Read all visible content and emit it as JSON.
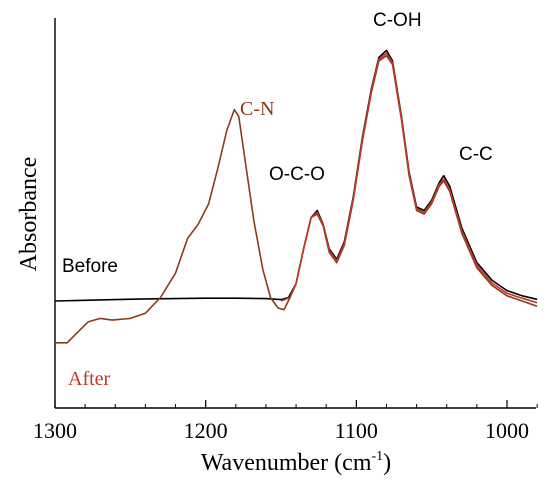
{
  "chart_data": {
    "type": "line",
    "xlabel": "Wavenumber (cm",
    "xlabel_sup": "-1",
    "xlabel_tail": ")",
    "ylabel": "Absorbance",
    "xlim": [
      1300,
      980
    ],
    "ylim": [
      0,
      1
    ],
    "x_reversed": true,
    "x_ticks": [
      1300,
      1200,
      1100,
      1000
    ],
    "y_ticks_labeled": false,
    "grid": false,
    "series": [
      {
        "name": "Before",
        "color": "#000000",
        "points": [
          [
            1300,
            0.25
          ],
          [
            1280,
            0.252
          ],
          [
            1260,
            0.254
          ],
          [
            1240,
            0.256
          ],
          [
            1220,
            0.257
          ],
          [
            1200,
            0.258
          ],
          [
            1180,
            0.258
          ],
          [
            1160,
            0.257
          ],
          [
            1150,
            0.254
          ],
          [
            1145,
            0.26
          ],
          [
            1140,
            0.3
          ],
          [
            1135,
            0.4
          ],
          [
            1130,
            0.49
          ],
          [
            1126,
            0.51
          ],
          [
            1122,
            0.47
          ],
          [
            1118,
            0.4
          ],
          [
            1113,
            0.37
          ],
          [
            1108,
            0.42
          ],
          [
            1102,
            0.55
          ],
          [
            1096,
            0.72
          ],
          [
            1090,
            0.86
          ],
          [
            1085,
            0.95
          ],
          [
            1080,
            0.97
          ],
          [
            1076,
            0.94
          ],
          [
            1070,
            0.78
          ],
          [
            1065,
            0.62
          ],
          [
            1060,
            0.52
          ],
          [
            1055,
            0.51
          ],
          [
            1050,
            0.54
          ],
          [
            1045,
            0.59
          ],
          [
            1042,
            0.61
          ],
          [
            1038,
            0.58
          ],
          [
            1030,
            0.46
          ],
          [
            1020,
            0.36
          ],
          [
            1010,
            0.31
          ],
          [
            1000,
            0.28
          ],
          [
            990,
            0.265
          ],
          [
            980,
            0.255
          ]
        ]
      },
      {
        "name": "After",
        "color": "#8b3a1a",
        "points": [
          [
            1300,
            0.13
          ],
          [
            1292,
            0.13
          ],
          [
            1285,
            0.16
          ],
          [
            1278,
            0.19
          ],
          [
            1270,
            0.2
          ],
          [
            1262,
            0.195
          ],
          [
            1250,
            0.2
          ],
          [
            1240,
            0.215
          ],
          [
            1230,
            0.26
          ],
          [
            1220,
            0.33
          ],
          [
            1212,
            0.43
          ],
          [
            1205,
            0.47
          ],
          [
            1198,
            0.53
          ],
          [
            1192,
            0.63
          ],
          [
            1186,
            0.74
          ],
          [
            1181,
            0.8
          ],
          [
            1178,
            0.78
          ],
          [
            1174,
            0.66
          ],
          [
            1168,
            0.48
          ],
          [
            1162,
            0.34
          ],
          [
            1157,
            0.26
          ],
          [
            1152,
            0.23
          ],
          [
            1148,
            0.225
          ],
          [
            1144,
            0.26
          ],
          [
            1140,
            0.3
          ],
          [
            1135,
            0.4
          ],
          [
            1130,
            0.49
          ],
          [
            1126,
            0.5
          ],
          [
            1122,
            0.465
          ],
          [
            1118,
            0.39
          ],
          [
            1113,
            0.36
          ],
          [
            1108,
            0.41
          ],
          [
            1102,
            0.54
          ],
          [
            1096,
            0.71
          ],
          [
            1090,
            0.85
          ],
          [
            1085,
            0.94
          ],
          [
            1080,
            0.955
          ],
          [
            1076,
            0.93
          ],
          [
            1070,
            0.77
          ],
          [
            1065,
            0.61
          ],
          [
            1060,
            0.51
          ],
          [
            1055,
            0.5
          ],
          [
            1050,
            0.53
          ],
          [
            1045,
            0.58
          ],
          [
            1042,
            0.595
          ],
          [
            1038,
            0.565
          ],
          [
            1030,
            0.445
          ],
          [
            1020,
            0.345
          ],
          [
            1010,
            0.295
          ],
          [
            1000,
            0.265
          ],
          [
            990,
            0.25
          ],
          [
            980,
            0.235
          ]
        ]
      },
      {
        "name": "",
        "color": "#c0392b",
        "points": [
          [
            1150,
            0.25
          ],
          [
            1144,
            0.26
          ],
          [
            1140,
            0.3
          ],
          [
            1135,
            0.4
          ],
          [
            1130,
            0.49
          ],
          [
            1126,
            0.505
          ],
          [
            1122,
            0.468
          ],
          [
            1118,
            0.395
          ],
          [
            1113,
            0.365
          ],
          [
            1108,
            0.415
          ],
          [
            1102,
            0.545
          ],
          [
            1096,
            0.715
          ],
          [
            1090,
            0.855
          ],
          [
            1085,
            0.945
          ],
          [
            1080,
            0.962
          ],
          [
            1076,
            0.935
          ],
          [
            1070,
            0.775
          ],
          [
            1065,
            0.615
          ],
          [
            1060,
            0.515
          ],
          [
            1055,
            0.505
          ],
          [
            1050,
            0.535
          ],
          [
            1045,
            0.585
          ],
          [
            1042,
            0.6
          ],
          [
            1038,
            0.57
          ],
          [
            1030,
            0.452
          ],
          [
            1020,
            0.352
          ],
          [
            1010,
            0.302
          ],
          [
            1000,
            0.272
          ],
          [
            990,
            0.258
          ],
          [
            980,
            0.245
          ]
        ]
      }
    ],
    "annotations": {
      "cn": "C-N",
      "oco": "O-C-O",
      "coh": "C-OH",
      "cc": "C-C",
      "before": "Before",
      "after": "After"
    },
    "colors": {
      "cn_label": "#8b3a1a",
      "after_label": "#c0392b",
      "before_label": "#000000"
    }
  }
}
